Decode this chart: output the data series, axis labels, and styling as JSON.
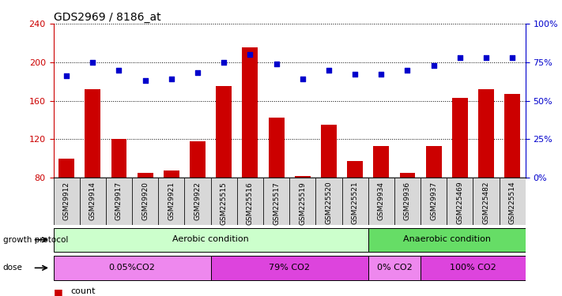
{
  "title": "GDS2969 / 8186_at",
  "samples": [
    "GSM29912",
    "GSM29914",
    "GSM29917",
    "GSM29920",
    "GSM29921",
    "GSM29922",
    "GSM225515",
    "GSM225516",
    "GSM225517",
    "GSM225519",
    "GSM225520",
    "GSM225521",
    "GSM29934",
    "GSM29936",
    "GSM29937",
    "GSM225469",
    "GSM225482",
    "GSM225514"
  ],
  "count_values": [
    100,
    172,
    120,
    85,
    87,
    118,
    175,
    215,
    142,
    82,
    135,
    97,
    113,
    85,
    113,
    163,
    172,
    167
  ],
  "percentile_values": [
    66,
    75,
    70,
    63,
    64,
    68,
    75,
    80,
    74,
    64,
    70,
    67,
    67,
    70,
    73,
    78,
    78,
    78
  ],
  "ylim_left": [
    80,
    240
  ],
  "ylim_right": [
    0,
    100
  ],
  "yticks_left": [
    80,
    120,
    160,
    200,
    240
  ],
  "yticks_right": [
    0,
    25,
    50,
    75,
    100
  ],
  "bar_color": "#cc0000",
  "dot_color": "#0000cc",
  "cell_color": "#d8d8d8",
  "groups": [
    {
      "label": "Aerobic condition",
      "start": 0,
      "end": 11,
      "color": "#ccffcc"
    },
    {
      "label": "Anaerobic condition",
      "start": 12,
      "end": 17,
      "color": "#66dd66"
    }
  ],
  "doses": [
    {
      "label": "0.05%CO2",
      "start": 0,
      "end": 5,
      "color": "#ee88ee"
    },
    {
      "label": "79% CO2",
      "start": 6,
      "end": 11,
      "color": "#dd44dd"
    },
    {
      "label": "0% CO2",
      "start": 12,
      "end": 13,
      "color": "#ee88ee"
    },
    {
      "label": "100% CO2",
      "start": 14,
      "end": 17,
      "color": "#dd44dd"
    }
  ]
}
